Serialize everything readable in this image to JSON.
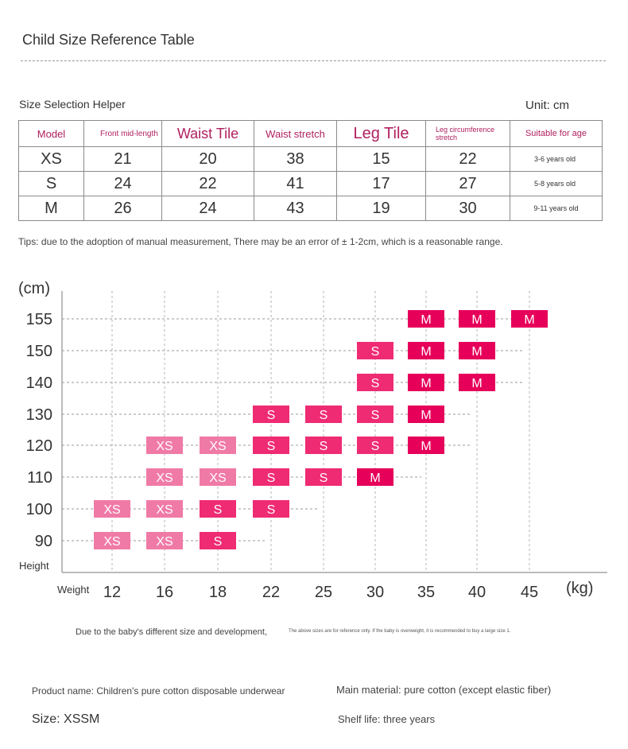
{
  "page": {
    "title": "Child Size Reference Table",
    "helper_title": "Size Selection Helper",
    "unit": "Unit: cm",
    "tips": "Tips: due to the adoption of manual measurement,   There may be an error of ± 1-2cm, which is a reasonable range."
  },
  "table": {
    "headers": [
      "Model",
      "Front mid-length",
      "Waist Tile",
      "Waist stretch",
      "Leg Tile",
      "Leg circumference stretch",
      "Suitable for age"
    ],
    "rows": [
      [
        "XS",
        "21",
        "20",
        "38",
        "15",
        "22",
        "3-6 years old"
      ],
      [
        "S",
        "24",
        "22",
        "41",
        "17",
        "27",
        "5-8 years old"
      ],
      [
        "M",
        "26",
        "24",
        "43",
        "19",
        "30",
        "9-11 years old"
      ]
    ]
  },
  "chart_data": {
    "type": "scatter",
    "y_unit": "(cm)",
    "x_unit": "(kg)",
    "y_name": "Height",
    "x_name": "Weight",
    "x_ticks": [
      12,
      16,
      18,
      22,
      25,
      30,
      35,
      40,
      45
    ],
    "y_ticks": [
      90,
      100,
      110,
      120,
      130,
      140,
      150,
      155
    ],
    "colors": {
      "XS": "#f07aa6",
      "S": "#ef2b73",
      "M": "#e6005a"
    },
    "points": [
      {
        "x": 12,
        "y": 90,
        "size": "XS"
      },
      {
        "x": 16,
        "y": 90,
        "size": "XS"
      },
      {
        "x": 18,
        "y": 90,
        "size": "S"
      },
      {
        "x": 12,
        "y": 100,
        "size": "XS"
      },
      {
        "x": 16,
        "y": 100,
        "size": "XS"
      },
      {
        "x": 18,
        "y": 100,
        "size": "S"
      },
      {
        "x": 22,
        "y": 100,
        "size": "S"
      },
      {
        "x": 16,
        "y": 110,
        "size": "XS"
      },
      {
        "x": 18,
        "y": 110,
        "size": "XS"
      },
      {
        "x": 22,
        "y": 110,
        "size": "S"
      },
      {
        "x": 25,
        "y": 110,
        "size": "S"
      },
      {
        "x": 30,
        "y": 110,
        "size": "M"
      },
      {
        "x": 16,
        "y": 120,
        "size": "XS"
      },
      {
        "x": 18,
        "y": 120,
        "size": "XS"
      },
      {
        "x": 22,
        "y": 120,
        "size": "S"
      },
      {
        "x": 25,
        "y": 120,
        "size": "S"
      },
      {
        "x": 30,
        "y": 120,
        "size": "S"
      },
      {
        "x": 35,
        "y": 120,
        "size": "M"
      },
      {
        "x": 22,
        "y": 130,
        "size": "S"
      },
      {
        "x": 25,
        "y": 130,
        "size": "S"
      },
      {
        "x": 30,
        "y": 130,
        "size": "S"
      },
      {
        "x": 35,
        "y": 130,
        "size": "M"
      },
      {
        "x": 30,
        "y": 140,
        "size": "S"
      },
      {
        "x": 35,
        "y": 140,
        "size": "M"
      },
      {
        "x": 40,
        "y": 140,
        "size": "M"
      },
      {
        "x": 30,
        "y": 150,
        "size": "S"
      },
      {
        "x": 35,
        "y": 150,
        "size": "M"
      },
      {
        "x": 40,
        "y": 150,
        "size": "M"
      },
      {
        "x": 35,
        "y": 155,
        "size": "M"
      },
      {
        "x": 40,
        "y": 155,
        "size": "M"
      },
      {
        "x": 45,
        "y": 155,
        "size": "M"
      }
    ]
  },
  "notes": {
    "main": "Due to the baby's different size and development,",
    "small": "The above sizes are for reference only. If the baby is overweight, it is recommended to buy a large size 1."
  },
  "product": {
    "name": "Product name: Children's pure cotton disposable underwear",
    "material": "Main material: pure cotton (except elastic fiber)",
    "size": "Size: XSSM",
    "shelf_life": "Shelf life: three years"
  }
}
